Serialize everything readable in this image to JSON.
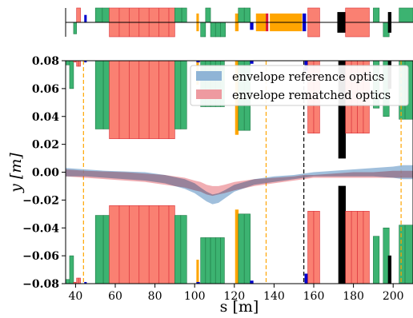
{
  "chart_data": {
    "type": "area",
    "xlabel": "s [m]",
    "ylabel": "y [m]",
    "xlim": [
      35,
      210
    ],
    "ylim": [
      -0.08,
      0.08
    ],
    "x_ticks": [
      40,
      60,
      80,
      100,
      120,
      140,
      160,
      180,
      200
    ],
    "y_ticks": [
      0.08,
      0.06,
      0.04,
      0.02,
      0.0,
      -0.02,
      -0.04,
      -0.06,
      -0.08
    ],
    "y_tick_labels": [
      "0.08",
      "0.06",
      "0.04",
      "0.02",
      "0.00",
      "−0.02",
      "−0.04",
      "−0.06",
      "−0.08"
    ],
    "legend": {
      "placement": "top-right",
      "entries": [
        {
          "label": "envelope reference optics",
          "color": "#8fb4d6"
        },
        {
          "label": "envelope rematched optics",
          "color": "#ee9aa0"
        }
      ]
    },
    "series": [
      {
        "name": "envelope reference optics",
        "color": "#8fb4d6",
        "x": [
          35,
          45,
          55,
          65,
          75,
          85,
          95,
          100,
          103,
          106,
          109,
          112,
          115,
          120,
          130,
          140,
          150,
          155,
          160,
          170,
          180,
          190,
          200,
          205,
          210
        ],
        "upper": [
          0.003,
          0.002,
          0.001,
          0.0005,
          0.0,
          -0.002,
          -0.005,
          -0.008,
          -0.011,
          -0.014,
          -0.016,
          -0.015,
          -0.013,
          -0.009,
          -0.005,
          -0.003,
          -0.002,
          -0.001,
          0.0,
          0.001,
          0.002,
          0.003,
          0.004,
          0.005,
          0.005
        ],
        "lower": [
          -0.003,
          -0.003,
          -0.004,
          -0.005,
          -0.006,
          -0.008,
          -0.012,
          -0.015,
          -0.018,
          -0.021,
          -0.023,
          -0.022,
          -0.019,
          -0.014,
          -0.009,
          -0.007,
          -0.005,
          -0.004,
          -0.003,
          -0.003,
          -0.003,
          -0.003,
          -0.004,
          -0.005,
          -0.005
        ]
      },
      {
        "name": "envelope rematched optics",
        "color": "#ee9aa0",
        "x": [
          35,
          45,
          55,
          65,
          75,
          85,
          95,
          100,
          103,
          106,
          109,
          112,
          115,
          120,
          130,
          140,
          150,
          155,
          160,
          170,
          180,
          190,
          200,
          205,
          210
        ],
        "upper": [
          0.002,
          0.001,
          0.0005,
          0.0,
          -0.001,
          -0.002,
          -0.004,
          -0.006,
          -0.007,
          -0.009,
          -0.01,
          -0.01,
          -0.009,
          -0.007,
          -0.005,
          -0.004,
          -0.003,
          -0.002,
          -0.002,
          -0.001,
          0.0,
          0.0,
          0.001,
          0.001,
          0.001
        ],
        "lower": [
          -0.003,
          -0.004,
          -0.005,
          -0.006,
          -0.007,
          -0.009,
          -0.011,
          -0.013,
          -0.014,
          -0.016,
          -0.017,
          -0.016,
          -0.015,
          -0.013,
          -0.01,
          -0.008,
          -0.006,
          -0.005,
          -0.004,
          -0.004,
          -0.004,
          -0.004,
          -0.004,
          -0.004,
          -0.004
        ]
      }
    ],
    "reference_lines": [
      {
        "x": 44,
        "color": "#ffa500",
        "style": "dashed"
      },
      {
        "x": 136,
        "color": "#ffa500",
        "style": "dashed"
      },
      {
        "x": 155,
        "color": "#000000",
        "style": "dashed"
      },
      {
        "x": 204,
        "color": "#ffa500",
        "style": "dashed"
      }
    ],
    "aperture_elements": [
      {
        "x0": 35,
        "x1": 37,
        "aperture": 0.077,
        "color": "#3cb371"
      },
      {
        "x0": 37,
        "x1": 39,
        "aperture": 0.06,
        "color": "#3cb371"
      },
      {
        "x0": 39,
        "x1": 40.2,
        "aperture": 0.079,
        "color": "#fa8072"
      },
      {
        "x0": 40.5,
        "x1": 41.5,
        "aperture": 0.076,
        "color": "#fa8072"
      },
      {
        "x0": 41.5,
        "x1": 42.5,
        "aperture": 0.076,
        "color": "#fa8072"
      },
      {
        "x0": 44.5,
        "x1": 45.5,
        "aperture": 0.079,
        "color": "#0000cd"
      },
      {
        "x0": 50,
        "x1": 54,
        "aperture": 0.031,
        "color": "#3cb371"
      },
      {
        "x0": 54,
        "x1": 57,
        "aperture": 0.031,
        "color": "#3cb371"
      },
      {
        "x0": 57,
        "x1": 90,
        "aperture": 0.024,
        "color": "#fa8072"
      },
      {
        "x0": 90,
        "x1": 93,
        "aperture": 0.031,
        "color": "#3cb371"
      },
      {
        "x0": 93,
        "x1": 96,
        "aperture": 0.031,
        "color": "#3cb371"
      },
      {
        "x0": 101,
        "x1": 102,
        "aperture": 0.063,
        "color": "#ffa500"
      },
      {
        "x0": 101,
        "x1": 102.5,
        "aperture": 0.079,
        "color": "#0000cd"
      },
      {
        "x0": 103,
        "x1": 105.5,
        "aperture": 0.047,
        "color": "#3cb371"
      },
      {
        "x0": 105.5,
        "x1": 108,
        "aperture": 0.047,
        "color": "#3cb371"
      },
      {
        "x0": 108,
        "x1": 110.5,
        "aperture": 0.047,
        "color": "#3cb371"
      },
      {
        "x0": 110.5,
        "x1": 113,
        "aperture": 0.047,
        "color": "#3cb371"
      },
      {
        "x0": 113,
        "x1": 115,
        "aperture": 0.047,
        "color": "#3cb371"
      },
      {
        "x0": 120.5,
        "x1": 122,
        "aperture": 0.027,
        "color": "#ffa500"
      },
      {
        "x0": 122,
        "x1": 125,
        "aperture": 0.03,
        "color": "#3cb371"
      },
      {
        "x0": 125,
        "x1": 128,
        "aperture": 0.03,
        "color": "#3cb371"
      },
      {
        "x0": 128,
        "x1": 129.5,
        "aperture": 0.078,
        "color": "#0000cd"
      },
      {
        "x0": 155.5,
        "x1": 157,
        "aperture": 0.073,
        "color": "#0000cd"
      },
      {
        "x0": 157,
        "x1": 160,
        "aperture": 0.028,
        "color": "#fa8072"
      },
      {
        "x0": 160,
        "x1": 163,
        "aperture": 0.028,
        "color": "#fa8072"
      },
      {
        "x0": 172.5,
        "x1": 176,
        "aperture": 0.01,
        "color": "#000000"
      },
      {
        "x0": 176,
        "x1": 179,
        "aperture": 0.028,
        "color": "#fa8072"
      },
      {
        "x0": 179,
        "x1": 182,
        "aperture": 0.028,
        "color": "#fa8072"
      },
      {
        "x0": 182,
        "x1": 185,
        "aperture": 0.028,
        "color": "#fa8072"
      },
      {
        "x0": 185,
        "x1": 188,
        "aperture": 0.028,
        "color": "#fa8072"
      },
      {
        "x0": 190,
        "x1": 193,
        "aperture": 0.046,
        "color": "#3cb371"
      },
      {
        "x0": 195,
        "x1": 198,
        "aperture": 0.04,
        "color": "#3cb371"
      },
      {
        "x0": 197.5,
        "x1": 199,
        "aperture": 0.06,
        "color": "#000000"
      },
      {
        "x0": 203,
        "x1": 206,
        "aperture": 0.038,
        "color": "#3cb371"
      },
      {
        "x0": 206,
        "x1": 210,
        "aperture": 0.038,
        "color": "#3cb371"
      }
    ],
    "lattice_elements": [
      {
        "x0": 39,
        "x1": 40.5,
        "side": "down",
        "h": 0.8,
        "color": "#3cb371"
      },
      {
        "x0": 40.5,
        "x1": 42.5,
        "side": "up",
        "h": 1.0,
        "color": "#fa8072"
      },
      {
        "x0": 44.5,
        "x1": 45.5,
        "side": "up",
        "h": 0.5,
        "color": "#0000cd"
      },
      {
        "x0": 50,
        "x1": 53.5,
        "side": "up",
        "h": 1.0,
        "color": "#3cb371"
      },
      {
        "x0": 53.5,
        "x1": 57,
        "side": "up",
        "h": 1.0,
        "color": "#3cb371"
      },
      {
        "x0": 57,
        "x1": 90,
        "side": "both",
        "h": 1.0,
        "color": "#fa8072"
      },
      {
        "x0": 90,
        "x1": 93.5,
        "side": "up",
        "h": 1.0,
        "color": "#3cb371"
      },
      {
        "x0": 93.5,
        "x1": 96,
        "side": "up",
        "h": 1.0,
        "color": "#3cb371"
      },
      {
        "x0": 101,
        "x1": 102,
        "side": "both",
        "h": 0.6,
        "color": "#ffa500"
      },
      {
        "x0": 103,
        "x1": 105.5,
        "side": "down",
        "h": 1.0,
        "color": "#3cb371"
      },
      {
        "x0": 105.5,
        "x1": 108,
        "side": "up",
        "h": 1.0,
        "color": "#3cb371"
      },
      {
        "x0": 108,
        "x1": 110.5,
        "side": "down",
        "h": 1.0,
        "color": "#3cb371"
      },
      {
        "x0": 110.5,
        "x1": 113,
        "side": "down",
        "h": 1.0,
        "color": "#3cb371"
      },
      {
        "x0": 113,
        "x1": 115.5,
        "side": "down",
        "h": 1.0,
        "color": "#3cb371"
      },
      {
        "x0": 120.5,
        "x1": 122,
        "side": "both",
        "h": 0.6,
        "color": "#ffa500"
      },
      {
        "x0": 122,
        "x1": 125,
        "side": "up",
        "h": 1.0,
        "color": "#3cb371"
      },
      {
        "x0": 125,
        "x1": 128,
        "side": "up",
        "h": 1.0,
        "color": "#3cb371"
      },
      {
        "x0": 128,
        "x1": 129.5,
        "side": "down",
        "h": 0.5,
        "color": "#0000cd"
      },
      {
        "x0": 131,
        "x1": 136,
        "side": "both",
        "h": 0.6,
        "color": "#ffa500"
      },
      {
        "x0": 136,
        "x1": 137,
        "side": "both",
        "h": 0.6,
        "color": "#dc143c"
      },
      {
        "x0": 138,
        "x1": 154,
        "side": "both",
        "h": 0.6,
        "color": "#ffa500"
      },
      {
        "x0": 154.5,
        "x1": 156,
        "side": "both",
        "h": 0.6,
        "color": "#0000cd"
      },
      {
        "x0": 157,
        "x1": 163,
        "side": "both",
        "h": 1.0,
        "color": "#fa8072"
      },
      {
        "x0": 172,
        "x1": 176,
        "side": "both",
        "h": 0.7,
        "color": "#000000"
      },
      {
        "x0": 176,
        "x1": 188,
        "side": "both",
        "h": 1.0,
        "color": "#fa8072"
      },
      {
        "x0": 190,
        "x1": 193,
        "side": "up",
        "h": 1.0,
        "color": "#3cb371"
      },
      {
        "x0": 195,
        "x1": 198,
        "side": "down",
        "h": 1.0,
        "color": "#3cb371"
      },
      {
        "x0": 197.5,
        "x1": 199,
        "side": "both",
        "h": 0.7,
        "color": "#000000"
      },
      {
        "x0": 203,
        "x1": 210,
        "side": "up",
        "h": 1.0,
        "color": "#3cb371"
      }
    ]
  }
}
